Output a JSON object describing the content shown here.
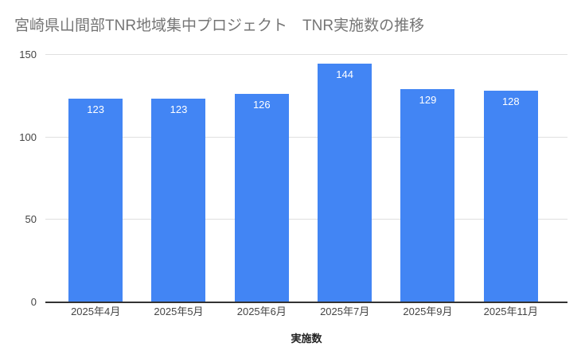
{
  "chart_data": {
    "type": "bar",
    "title": "宮崎県山間部TNR地域集中プロジェクト　TNR実施数の推移",
    "categories": [
      "2025年4月",
      "2025年5月",
      "2025年6月",
      "2025年7月",
      "2025年9月",
      "2025年11月"
    ],
    "values": [
      123,
      123,
      126,
      144,
      129,
      128
    ],
    "xlabel": "実施数",
    "ylabel": "",
    "ylim": [
      0,
      150
    ],
    "yticks": [
      0,
      50,
      100,
      150
    ],
    "grid": true,
    "legend": "none",
    "bar_color": "#4285f4",
    "bar_label_color": "#ffffff"
  },
  "colors": {
    "background": "#ffffff",
    "title_text": "#757575",
    "axis_text": "#444444",
    "baseline": "#333333",
    "gridline": "#e0e0e0"
  }
}
